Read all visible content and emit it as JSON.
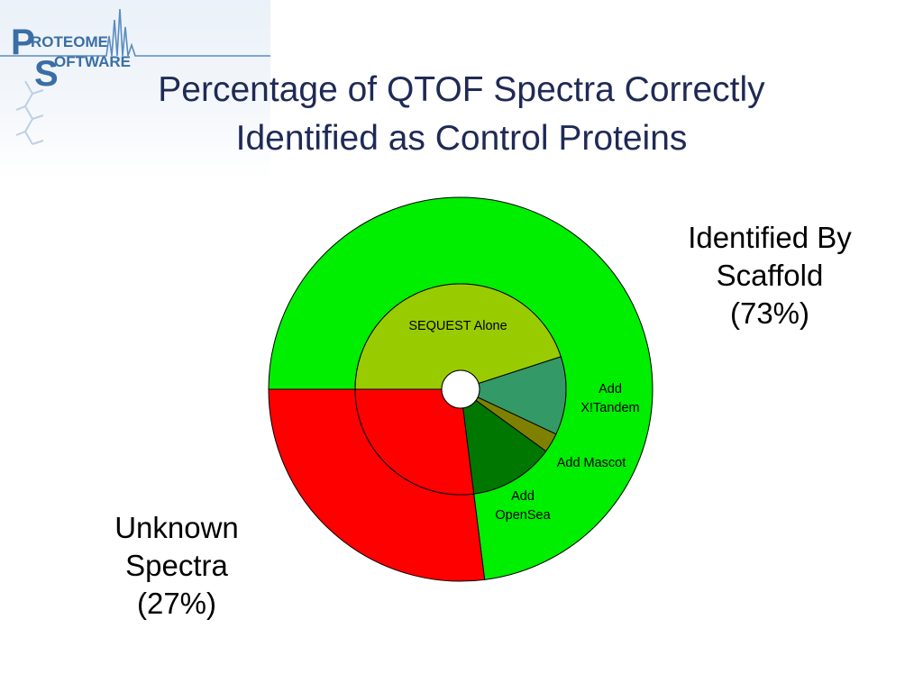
{
  "logo": {
    "word_top": "ROTEOME",
    "word_bottom": "OFTWARE",
    "initial_top": "P",
    "initial_bottom": "S"
  },
  "title": {
    "line1": "Percentage of QTOF Spectra Correctly",
    "line2": "Identified as Control Proteins"
  },
  "chart_data": {
    "type": "pie",
    "title": "Percentage of QTOF Spectra Correctly Identified as Control Proteins",
    "rings": [
      {
        "ring": "outer",
        "slices": [
          {
            "label_lines": [
              "Identified By",
              "Scaffold",
              "(73%)"
            ],
            "value": 73,
            "color": "#00ee00"
          },
          {
            "label_lines": [
              "Unknown",
              "Spectra",
              "(27%)"
            ],
            "value": 27,
            "color": "#ff0000"
          }
        ]
      },
      {
        "ring": "inner",
        "slices": [
          {
            "label_lines": [
              "SEQUEST Alone"
            ],
            "value": 45,
            "color": "#99cc00"
          },
          {
            "label_lines": [
              "Add",
              "X!Tandem"
            ],
            "value": 12,
            "color": "#339966"
          },
          {
            "label_lines": [
              "Add Mascot"
            ],
            "value": 3,
            "color": "#808000"
          },
          {
            "label_lines": [
              "Add",
              "OpenSea"
            ],
            "value": 13,
            "color": "#007700"
          },
          {
            "label_lines": [],
            "value": 27,
            "color": "#ff0000"
          }
        ]
      }
    ]
  }
}
